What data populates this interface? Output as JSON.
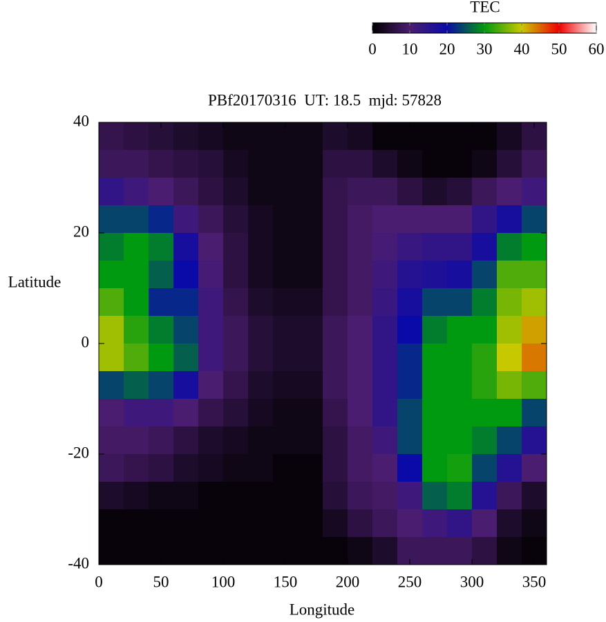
{
  "chart_data": {
    "type": "heatmap",
    "title": "PBf20170316  UT: 18.5  mjd: 57828",
    "x_label": "Longitude",
    "y_label": "Latitude",
    "xlim": [
      0,
      360
    ],
    "ylim": [
      -40,
      40
    ],
    "xticks": [
      0,
      50,
      100,
      150,
      200,
      250,
      300,
      350
    ],
    "yticks": [
      -40,
      -20,
      0,
      20,
      40
    ],
    "x": [
      10,
      30,
      50,
      70,
      90,
      110,
      130,
      150,
      170,
      190,
      210,
      230,
      250,
      270,
      290,
      310,
      330,
      350
    ],
    "y": [
      37.5,
      32.5,
      27.5,
      22.5,
      17.5,
      12.5,
      7.5,
      2.5,
      -2.5,
      -7.5,
      -12.5,
      -17.5,
      -22.5,
      -27.5,
      -32.5,
      -37.5
    ],
    "z": [
      [
        7,
        6,
        5,
        4,
        3,
        2,
        2,
        2,
        2,
        4,
        3,
        1,
        1,
        1,
        1,
        1,
        3,
        6
      ],
      [
        8,
        8,
        7,
        6,
        5,
        3,
        2,
        2,
        2,
        6,
        6,
        4,
        2,
        1,
        1,
        2,
        5,
        8
      ],
      [
        14,
        12,
        10,
        8,
        6,
        4,
        2,
        2,
        2,
        7,
        8,
        8,
        6,
        4,
        5,
        8,
        10,
        12
      ],
      [
        24,
        24,
        22,
        12,
        8,
        5,
        3,
        2,
        2,
        7,
        9,
        10,
        10,
        10,
        10,
        14,
        18,
        24
      ],
      [
        28,
        30,
        28,
        18,
        10,
        6,
        3,
        2,
        2,
        7,
        9,
        11,
        13,
        14,
        14,
        18,
        28,
        30
      ],
      [
        30,
        30,
        26,
        20,
        11,
        6,
        3,
        2,
        2,
        7,
        9,
        12,
        16,
        17,
        18,
        24,
        34,
        34
      ],
      [
        34,
        30,
        22,
        22,
        12,
        7,
        4,
        3,
        3,
        7,
        9,
        13,
        18,
        24,
        24,
        28,
        36,
        38
      ],
      [
        38,
        32,
        28,
        24,
        12,
        8,
        5,
        4,
        4,
        8,
        10,
        14,
        20,
        28,
        30,
        30,
        38,
        42
      ],
      [
        38,
        34,
        30,
        26,
        12,
        8,
        5,
        4,
        4,
        8,
        10,
        14,
        22,
        30,
        30,
        32,
        40,
        44
      ],
      [
        24,
        26,
        24,
        18,
        10,
        7,
        4,
        3,
        3,
        8,
        10,
        14,
        22,
        30,
        30,
        32,
        36,
        34
      ],
      [
        10,
        12,
        12,
        10,
        7,
        5,
        3,
        2,
        2,
        7,
        10,
        14,
        24,
        30,
        30,
        30,
        30,
        24
      ],
      [
        9,
        9,
        8,
        6,
        4,
        3,
        2,
        2,
        2,
        6,
        9,
        12,
        24,
        30,
        30,
        28,
        24,
        16
      ],
      [
        8,
        7,
        6,
        4,
        3,
        2,
        2,
        1,
        1,
        6,
        9,
        10,
        20,
        30,
        31,
        24,
        16,
        10
      ],
      [
        4,
        3,
        2,
        2,
        1,
        1,
        1,
        1,
        1,
        5,
        8,
        9,
        12,
        26,
        28,
        16,
        8,
        4
      ],
      [
        1,
        1,
        1,
        1,
        1,
        1,
        1,
        1,
        1,
        3,
        6,
        8,
        10,
        12,
        14,
        10,
        4,
        2
      ],
      [
        1,
        1,
        1,
        1,
        1,
        1,
        1,
        1,
        1,
        1,
        2,
        4,
        8,
        8,
        8,
        6,
        2,
        1
      ]
    ],
    "colorbar": {
      "label": "TEC",
      "lim": [
        0,
        60
      ],
      "ticks": [
        0,
        10,
        20,
        30,
        40,
        50,
        60
      ],
      "colors": [
        "#000000",
        "#4b1d70",
        "#0a0aa8",
        "#009a10",
        "#c8c800",
        "#f00000",
        "#ffffff"
      ]
    }
  }
}
